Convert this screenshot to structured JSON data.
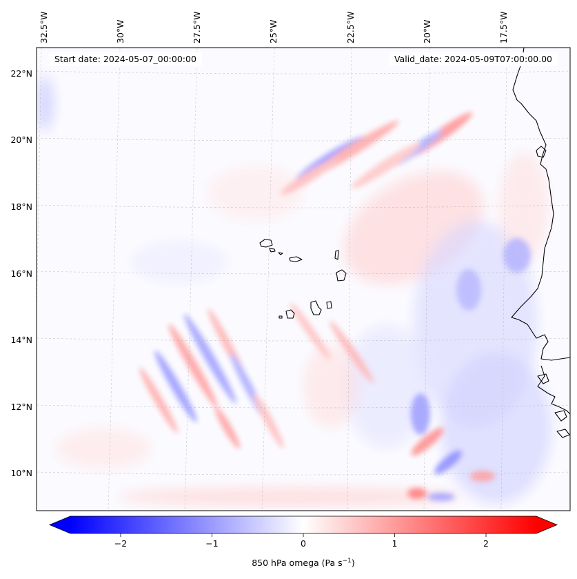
{
  "map": {
    "start_date": "Start date: 2024-05-07_00:00:00",
    "valid_date": "Valid_date: 2024-05-09T07:00:00.00",
    "lon_ticks": [
      "32.5°W",
      "30°W",
      "27.5°W",
      "25°W",
      "22.5°W",
      "20°W",
      "17.5°W"
    ],
    "lat_ticks": [
      "22°N",
      "20°N",
      "18°N",
      "16°N",
      "14°N",
      "12°N",
      "10°N"
    ],
    "gridlines": true,
    "colormap": "bwr",
    "colors": {
      "negative": "#0000ff",
      "zero": "#ffffff",
      "positive": "#ff0000",
      "coast": "#000000"
    }
  },
  "colorbar": {
    "ticks": [
      "−2",
      "−1",
      "0",
      "1",
      "2"
    ],
    "range": [
      -2.75,
      2.75
    ],
    "extend": "both",
    "label": "850 hPa omega (Pa s",
    "label_exponent": "−1",
    "label_close": ")"
  }
}
